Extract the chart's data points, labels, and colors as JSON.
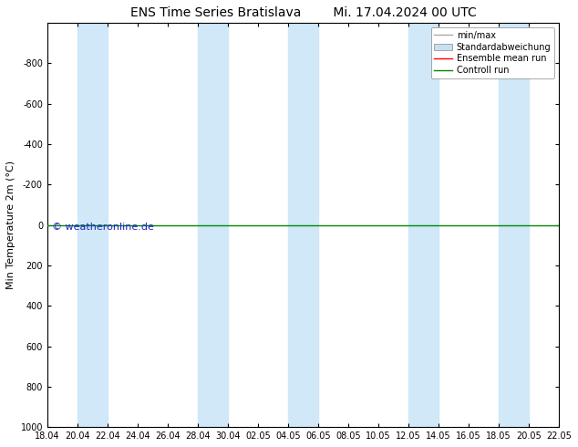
{
  "title_left": "ENS Time Series Bratislava",
  "title_right": "Mi. 17.04.2024 00 UTC",
  "ylabel": "Min Temperature 2m (°C)",
  "ylim_bottom": -1000,
  "ylim_top": 1000,
  "yticks": [
    -800,
    -600,
    -400,
    -200,
    0,
    200,
    400,
    600,
    800,
    1000
  ],
  "x_start_days": 0,
  "x_end_days": 34,
  "x_tick_positions": [
    0,
    2,
    4,
    6,
    8,
    10,
    12,
    14,
    16,
    18,
    20,
    22,
    24,
    26,
    28,
    30,
    32,
    34
  ],
  "x_tick_labels": [
    "18.04",
    "20.04",
    "22.04",
    "24.04",
    "26.04",
    "28.04",
    "30.04",
    "02.05",
    "04.05",
    "06.05",
    "08.05",
    "10.05",
    "12.05",
    "14.05",
    "16.05",
    "18.05",
    "20.05",
    "22.05"
  ],
  "band_positions": [
    [
      2,
      4
    ],
    [
      10,
      12
    ],
    [
      16,
      18
    ],
    [
      24,
      26
    ],
    [
      30,
      32
    ]
  ],
  "band_color": "#d0e8f8",
  "bg_color": "#ffffff",
  "control_run_color": "#008800",
  "ensemble_mean_color": "#ff0000",
  "minmax_line_color": "#aaaaaa",
  "std_fill_color": "#c8dff0",
  "watermark_text": "© weatheronline.de",
  "watermark_color": "#2222cc",
  "control_run_y": 0.0,
  "title_fontsize": 10,
  "axis_label_fontsize": 8,
  "tick_fontsize": 7,
  "legend_fontsize": 7,
  "watermark_fontsize": 8
}
